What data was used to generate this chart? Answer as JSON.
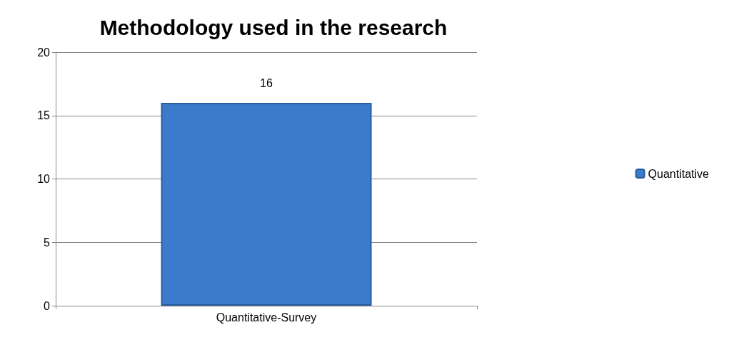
{
  "chart_data": {
    "type": "bar",
    "title": "Methodology used in the research",
    "categories": [
      "Quantitative-Survey"
    ],
    "series": [
      {
        "name": "Quantitative",
        "color": "#3c7bcc",
        "values": [
          16
        ]
      }
    ],
    "ylim": [
      0,
      20
    ],
    "yticks": [
      0,
      5,
      10,
      15,
      20
    ],
    "grid": "y",
    "legend": "right",
    "data_labels": true
  }
}
